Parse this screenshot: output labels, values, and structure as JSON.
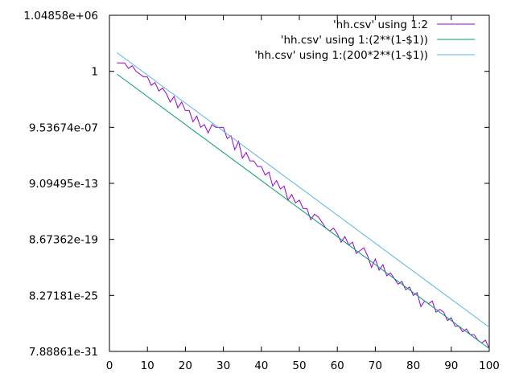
{
  "chart_data": {
    "type": "line",
    "title": "",
    "xlabel": "",
    "ylabel": "",
    "xlim": [
      0,
      100
    ],
    "ylim_log2": [
      -100,
      20
    ],
    "y_scale": "log2",
    "x_ticks": [
      0,
      10,
      20,
      30,
      40,
      50,
      60,
      70,
      80,
      90,
      100
    ],
    "y_ticks": [
      {
        "value_log2": 20,
        "label": "1.04858e+06"
      },
      {
        "value_log2": 0,
        "label": "1"
      },
      {
        "value_log2": -20,
        "label": "9.53674e-07"
      },
      {
        "value_log2": -40,
        "label": "9.09495e-13"
      },
      {
        "value_log2": -60,
        "label": "8.67362e-19"
      },
      {
        "value_log2": -80,
        "label": "8.27181e-25"
      },
      {
        "value_log2": -100,
        "label": "7.88861e-31"
      }
    ],
    "grid": false,
    "legend_position": "top-right",
    "series": [
      {
        "name": "'hh.csv' using 1:2",
        "color": "#9400d3",
        "x": [
          2,
          3,
          4,
          5,
          6,
          7,
          8,
          9,
          10,
          11,
          12,
          13,
          14,
          15,
          16,
          17,
          18,
          19,
          20,
          21,
          22,
          23,
          24,
          25,
          26,
          27,
          28,
          29,
          30,
          31,
          32,
          33,
          34,
          35,
          36,
          37,
          38,
          39,
          40,
          41,
          42,
          43,
          44,
          45,
          46,
          47,
          48,
          49,
          50,
          51,
          52,
          53,
          54,
          55,
          56,
          57,
          58,
          59,
          60,
          61,
          62,
          63,
          64,
          65,
          66,
          67,
          68,
          69,
          70,
          71,
          72,
          73,
          74,
          75,
          76,
          77,
          78,
          79,
          80,
          81,
          82,
          83,
          84,
          85,
          86,
          87,
          88,
          89,
          90,
          91,
          92,
          93,
          94,
          95,
          96,
          97,
          98,
          99,
          100
        ],
        "y_log2": [
          3,
          3,
          3,
          1,
          2,
          0,
          -1,
          -2,
          -2,
          -5,
          -4,
          -7,
          -6,
          -8,
          -11,
          -9,
          -13,
          -11,
          -14,
          -14,
          -18,
          -16,
          -20,
          -19,
          -22,
          -19,
          -20,
          -20,
          -20,
          -24,
          -23,
          -28,
          -25,
          -31,
          -29,
          -32,
          -32,
          -34,
          -34,
          -37,
          -36,
          -41,
          -39,
          -42,
          -41,
          -46,
          -44,
          -47,
          -46,
          -49,
          -49,
          -53,
          -51,
          -52,
          -54,
          -56,
          -57,
          -56,
          -58,
          -61,
          -59,
          -62,
          -61,
          -65,
          -64,
          -63,
          -66,
          -70,
          -67,
          -71,
          -69,
          -73,
          -72,
          -74,
          -76,
          -75,
          -78,
          -77,
          -80,
          -79,
          -84,
          -82,
          -83,
          -82,
          -86,
          -85,
          -86,
          -89,
          -88,
          -91,
          -91,
          -93,
          -92,
          -94,
          -94,
          -96,
          -97,
          -96,
          -99
        ]
      },
      {
        "name": "'hh.csv' using 1:(2**(1-$1))",
        "color": "#009e73",
        "formula": "2**(1-x)",
        "x_range": [
          2,
          100
        ]
      },
      {
        "name": "'hh.csv' using 1:(200*2**(1-$1))",
        "color": "#56b4e9",
        "formula": "200*2**(1-x)",
        "x_range": [
          2,
          100
        ]
      }
    ]
  }
}
